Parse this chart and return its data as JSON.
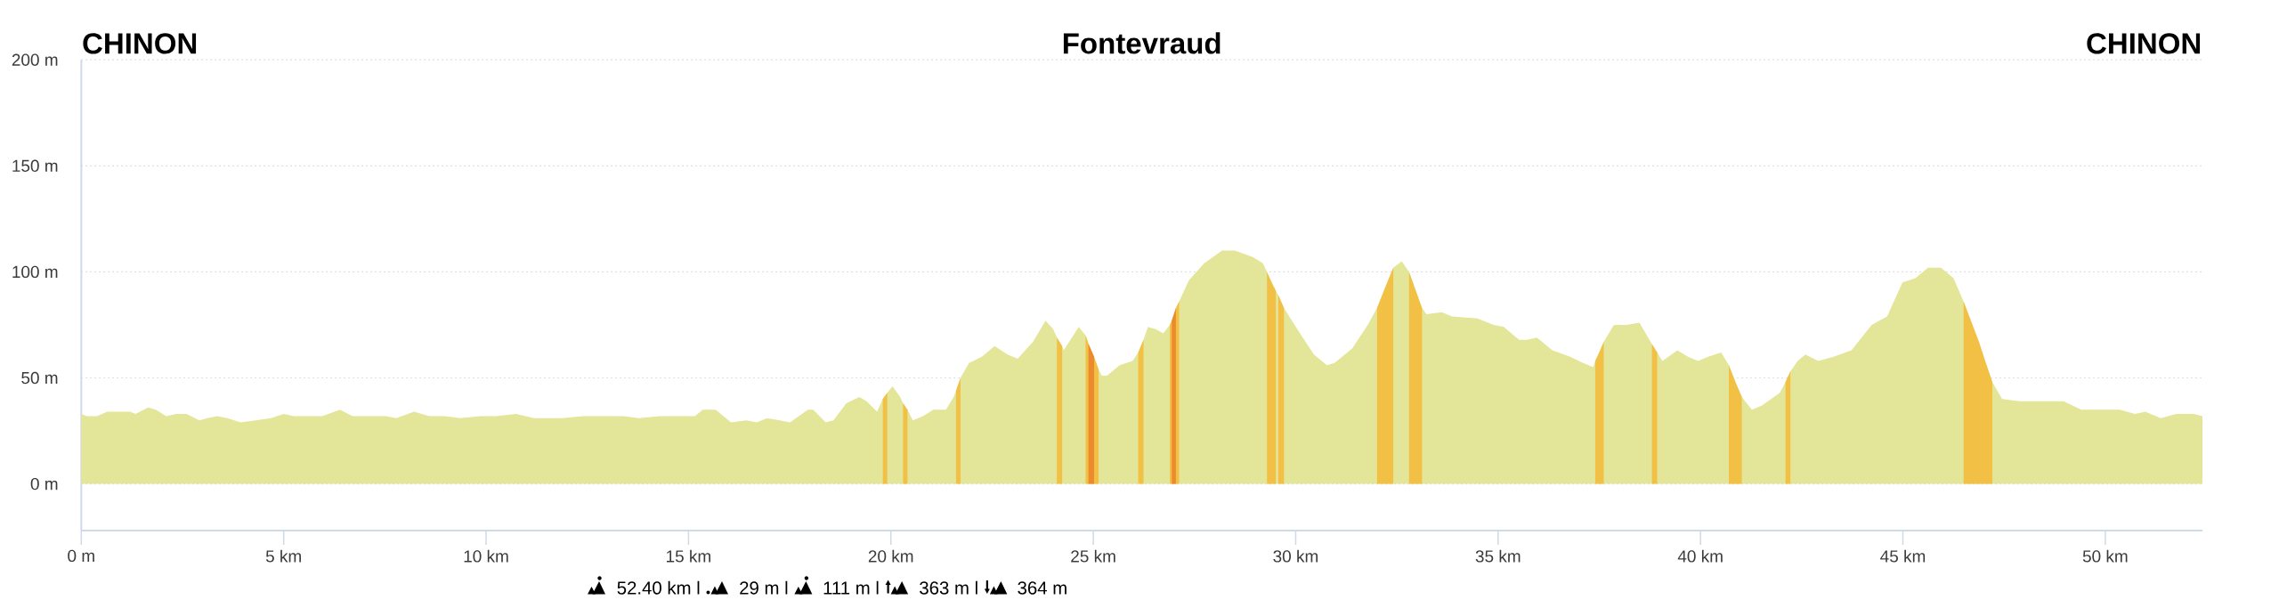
{
  "chart_data": {
    "type": "area",
    "annotations": [
      "CHINON",
      "Fontevraud",
      "CHINON",
      "52.40 km l",
      "29 m l",
      "111 m l",
      "363 m l",
      "364 m"
    ],
    "xlim": [
      0,
      52.4
    ],
    "ylim": [
      -22,
      200
    ],
    "xticks": [
      {
        "value": 0,
        "label": "0 m"
      },
      {
        "value": 5,
        "label": "5 km"
      },
      {
        "value": 10,
        "label": "10 km"
      },
      {
        "value": 15,
        "label": "15 km"
      },
      {
        "value": 20,
        "label": "20 km"
      },
      {
        "value": 25,
        "label": "25 km"
      },
      {
        "value": 30,
        "label": "30 km"
      },
      {
        "value": 35,
        "label": "35 km"
      },
      {
        "value": 40,
        "label": "40 km"
      },
      {
        "value": 45,
        "label": "45 km"
      },
      {
        "value": 50,
        "label": "50 km"
      }
    ],
    "yticks": [
      {
        "value": 0,
        "label": "0 m"
      },
      {
        "value": 50,
        "label": "50 m"
      },
      {
        "value": 100,
        "label": "100 m"
      },
      {
        "value": 150,
        "label": "150 m"
      },
      {
        "value": 200,
        "label": "200 m"
      }
    ],
    "grid": "y",
    "series": [
      {
        "color": "#e3e598",
        "x": [
          0,
          0.14,
          0.39,
          0.64,
          1.21,
          1.34,
          1.65,
          1.84,
          2.1,
          2.35,
          2.6,
          2.92,
          3.11,
          3.36,
          3.61,
          3.93,
          4.31,
          4.68,
          5.0,
          5.25,
          5.76,
          5.95,
          6.39,
          6.7,
          7.02,
          7.21,
          7.53,
          7.78,
          8.22,
          8.6,
          8.98,
          9.36,
          9.86,
          10.24,
          10.74,
          11.19,
          11.88,
          12.39,
          13.4,
          13.78,
          14.28,
          14.66,
          15.16,
          15.35,
          15.67,
          16.05,
          16.43,
          16.69,
          16.94,
          17.26,
          17.51,
          17.95,
          18.08,
          18.39,
          18.58,
          18.9,
          19.22,
          19.4,
          19.66,
          19.8,
          19.91,
          20.04,
          20.23,
          20.3,
          20.41,
          20.54,
          20.79,
          21.05,
          21.36,
          21.55,
          21.61,
          21.72,
          21.93,
          22.25,
          22.56,
          22.88,
          23.13,
          23.51,
          23.82,
          24.01,
          24.1,
          24.23,
          24.27,
          24.64,
          24.81,
          25.13,
          25.21,
          25.34,
          25.65,
          25.97,
          26.11,
          26.24,
          26.35,
          26.54,
          26.73,
          26.89,
          27.12,
          27.36,
          27.74,
          28.18,
          28.5,
          28.94,
          29.19,
          29.29,
          29.51,
          29.57,
          29.71,
          30.07,
          30.45,
          30.77,
          30.96,
          31.4,
          31.78,
          32.01,
          32.41,
          32.62,
          32.8,
          33.12,
          33.23,
          33.61,
          33.86,
          34.49,
          34.89,
          35.14,
          35.52,
          35.71,
          35.96,
          36.34,
          36.78,
          37.1,
          37.35,
          37.4,
          37.61,
          37.86,
          38.17,
          38.49,
          38.8,
          38.93,
          39.06,
          39.43,
          39.69,
          39.94,
          40.19,
          40.51,
          40.7,
          41.02,
          41.27,
          41.52,
          41.96,
          42.1,
          42.22,
          42.4,
          42.59,
          42.91,
          43.29,
          43.73,
          44.23,
          44.61,
          44.99,
          45.31,
          45.62,
          45.94,
          46.25,
          46.5,
          47.21,
          47.45,
          47.89,
          48.78,
          48.97,
          49.41,
          50.36,
          50.73,
          50.99,
          51.37,
          51.75,
          52.19,
          52.4
        ],
        "values": [
          33,
          32,
          32,
          34,
          34,
          33,
          36,
          35,
          32,
          33,
          33,
          30,
          31,
          32,
          31,
          29,
          30,
          31,
          33,
          32,
          32,
          32,
          35,
          32,
          32,
          32,
          32,
          31,
          34,
          32,
          32,
          31,
          32,
          32,
          33,
          31,
          31,
          32,
          32,
          31,
          32,
          32,
          32,
          35,
          35,
          29,
          30,
          29,
          31,
          30,
          29,
          35,
          35,
          29,
          30,
          38,
          41,
          39,
          34,
          40,
          43,
          46,
          41,
          38,
          35,
          30,
          32,
          35,
          35,
          41,
          44,
          50,
          57,
          60,
          65,
          61,
          59,
          67,
          77,
          73,
          69,
          65,
          63,
          74,
          70,
          54,
          51,
          51,
          56,
          58,
          62,
          68,
          74,
          73,
          71,
          75,
          86,
          96,
          104,
          110,
          110,
          107,
          104,
          100,
          91,
          89,
          83,
          72,
          61,
          56,
          57,
          64,
          75,
          83,
          102,
          105,
          100,
          83,
          80,
          81,
          79,
          78,
          75,
          74,
          68,
          68,
          69,
          63,
          60,
          57,
          55,
          58,
          67,
          75,
          75,
          76,
          66,
          62,
          58,
          63,
          60,
          58,
          60,
          62,
          56,
          41,
          35,
          37,
          43,
          48,
          53,
          58,
          61,
          58,
          60,
          63,
          75,
          79,
          95,
          97,
          102,
          102,
          97,
          86,
          48,
          40,
          39,
          39,
          39,
          35,
          35,
          33,
          34,
          31,
          33,
          33,
          32
        ]
      },
      {
        "color": "#f2c045",
        "x": [
          19.8,
          19.91
        ],
        "values": [
          40,
          43
        ]
      },
      {
        "color": "#f2c045",
        "x": [
          20.3,
          20.41
        ],
        "values": [
          38,
          35
        ]
      },
      {
        "color": "#f2c045",
        "x": [
          21.61,
          21.72
        ],
        "values": [
          44,
          50
        ]
      },
      {
        "color": "#f2c045",
        "x": [
          24.1,
          24.23
        ],
        "values": [
          69,
          65
        ]
      },
      {
        "color": "#f2c045",
        "x": [
          24.81,
          24.88,
          25.02,
          25.13
        ],
        "values": [
          70,
          66,
          60,
          54
        ]
      },
      {
        "color": "#ec8a2e",
        "x": [
          24.88,
          25.02
        ],
        "values": [
          66,
          60
        ]
      },
      {
        "color": "#f2c045",
        "x": [
          26.11,
          26.24
        ],
        "values": [
          62,
          68
        ]
      },
      {
        "color": "#f2c045",
        "x": [
          26.89,
          26.94,
          27.04,
          27.12
        ],
        "values": [
          75,
          77,
          83,
          86
        ]
      },
      {
        "color": "#ec8a2e",
        "x": [
          26.94,
          27.04
        ],
        "values": [
          77,
          83
        ]
      },
      {
        "color": "#f2c045",
        "x": [
          29.29,
          29.4,
          29.51,
          29.54,
          29.57,
          29.71
        ],
        "values": [
          100,
          95,
          91,
          null,
          89,
          83
        ]
      },
      {
        "color": "#f2c045",
        "x": [
          32.01,
          32.22,
          32.41
        ],
        "values": [
          83,
          93,
          102
        ]
      },
      {
        "color": "#f2c045",
        "x": [
          32.8,
          32.95,
          33.12
        ],
        "values": [
          100,
          92,
          83
        ]
      },
      {
        "color": "#f2c045",
        "x": [
          37.4,
          37.5,
          37.61
        ],
        "values": [
          58,
          62,
          67
        ]
      },
      {
        "color": "#f2c045",
        "x": [
          38.8,
          38.93
        ],
        "values": [
          66,
          62
        ]
      },
      {
        "color": "#f2c045",
        "x": [
          40.7,
          40.86,
          41.02
        ],
        "values": [
          56,
          48,
          41
        ]
      },
      {
        "color": "#f2c045",
        "x": [
          42.1,
          42.22
        ],
        "values": [
          48,
          53
        ]
      },
      {
        "color": "#f2c045",
        "x": [
          46.5,
          46.7,
          46.88,
          47.05,
          47.21
        ],
        "values": [
          86,
          76,
          67,
          57,
          48
        ]
      }
    ]
  }
}
